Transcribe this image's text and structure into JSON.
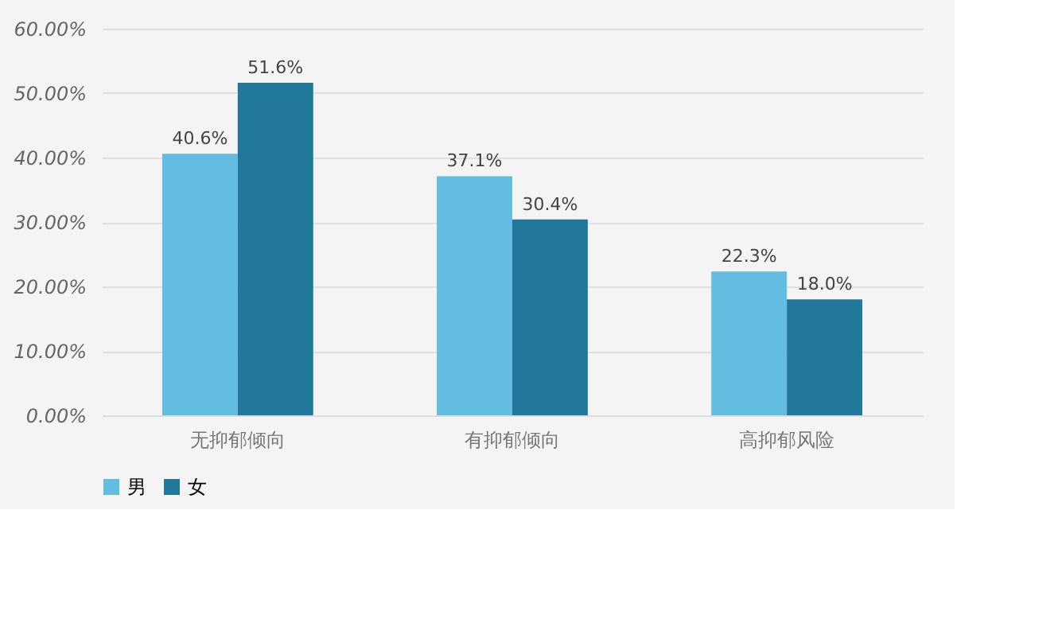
{
  "chart_data": {
    "type": "bar",
    "categories": [
      "无抑郁倾向",
      "有抑郁倾向",
      "高抑郁风险"
    ],
    "series": [
      {
        "name": "男",
        "color": "#62bde0",
        "values": [
          40.6,
          37.1,
          22.3
        ],
        "value_labels": [
          "40.6%",
          "37.1%",
          "22.3%"
        ]
      },
      {
        "name": "女",
        "color": "#22789a",
        "values": [
          51.6,
          30.4,
          18.0
        ],
        "value_labels": [
          "51.6%",
          "30.4%",
          "18.0%"
        ]
      }
    ],
    "ylim": [
      0,
      60
    ],
    "yticks": [
      {
        "value": 0,
        "label": "0.00%"
      },
      {
        "value": 10,
        "label": "10.00%"
      },
      {
        "value": 20,
        "label": "20.00%"
      },
      {
        "value": 30,
        "label": "30.00%"
      },
      {
        "value": 40,
        "label": "40.00%"
      },
      {
        "value": 50,
        "label": "50.00%"
      },
      {
        "value": 60,
        "label": "60.00%"
      }
    ],
    "grid": "y",
    "legend": "bottom"
  }
}
